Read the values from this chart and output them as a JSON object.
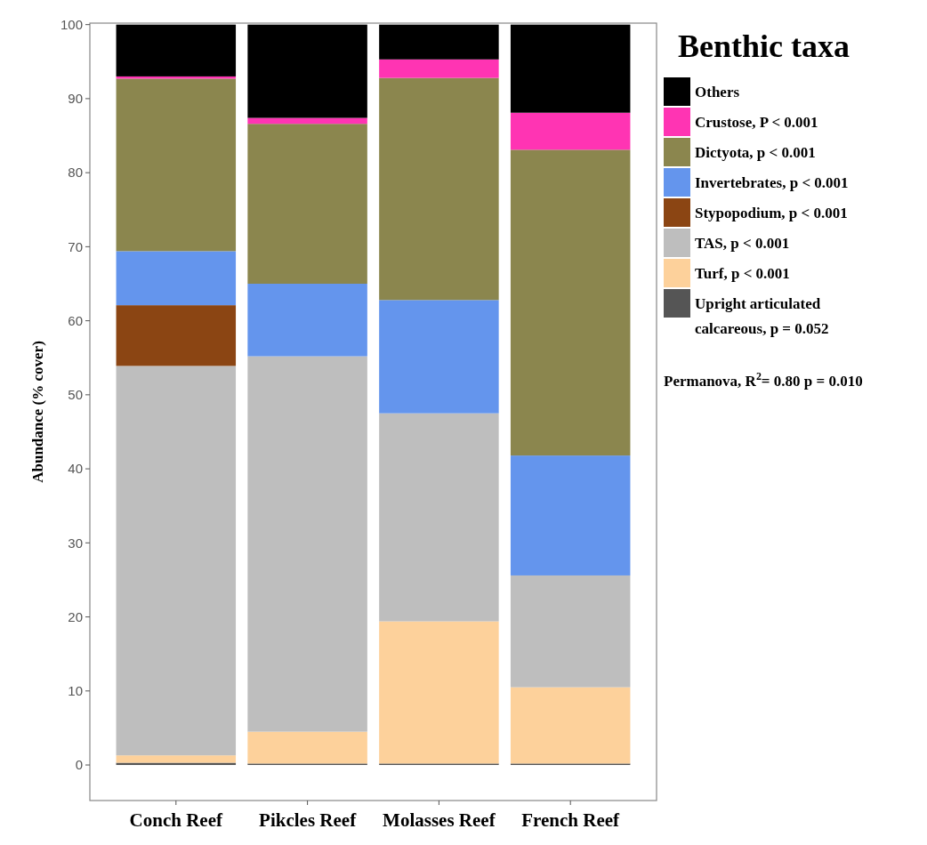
{
  "chart_data": {
    "type": "bar",
    "stacked": true,
    "ylabel": "Abundance (% cover)",
    "legend_title": "Benthic taxa",
    "legend": "right",
    "categories": [
      "Conch Reef",
      "Pikcles Reef",
      "Molasses Reef",
      "French Reef"
    ],
    "ylim": [
      -4.8,
      100.2
    ],
    "yticks": [
      0,
      10,
      20,
      30,
      40,
      50,
      60,
      70,
      80,
      90,
      100
    ],
    "grid": false,
    "series": [
      {
        "name": "Upright articulated calcareous, p = 0.052",
        "color": "#555555",
        "values": [
          0.3,
          0.2,
          0.2,
          0.2
        ]
      },
      {
        "name": "Turf, p < 0.001",
        "color": "#fdd19b",
        "values": [
          1.0,
          4.3,
          19.2,
          10.3
        ]
      },
      {
        "name": "TAS, p < 0.001",
        "color": "#bebebe",
        "values": [
          52.6,
          50.7,
          28.1,
          15.1
        ]
      },
      {
        "name": "Stypopodium, p < 0.001",
        "color": "#8b4513",
        "values": [
          8.2,
          0,
          0,
          0
        ]
      },
      {
        "name": "Invertebrates, p < 0.001",
        "color": "#6495ed",
        "values": [
          7.3,
          9.8,
          15.3,
          16.2
        ]
      },
      {
        "name": "Dictyota, p < 0.001",
        "color": "#8b864e",
        "values": [
          23.3,
          21.6,
          30.0,
          41.3
        ]
      },
      {
        "name": "Crustose, P < 0.001",
        "color": "#ff34b3",
        "values": [
          0.3,
          0.8,
          2.5,
          5.0
        ]
      },
      {
        "name": "Others",
        "color": "#000000",
        "values": [
          7.0,
          12.6,
          4.7,
          11.9
        ]
      }
    ],
    "annotations": [
      "Permanova, R$^{2}$= 0.80 p = 0.010"
    ]
  }
}
